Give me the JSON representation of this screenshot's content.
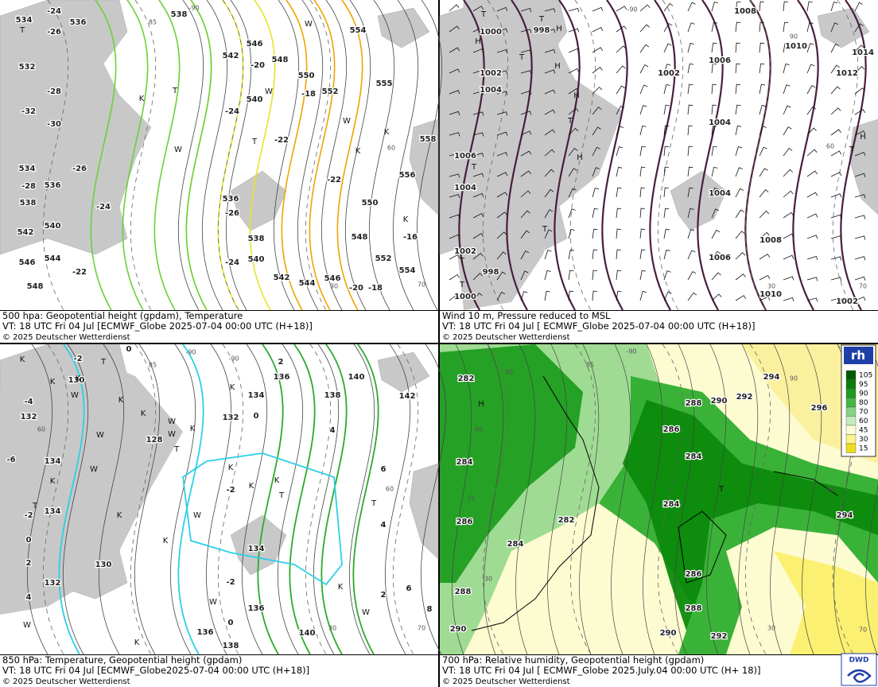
{
  "panels": [
    {
      "caption": [
        "500 hpa: Geopotential height (gpdam), Temperature",
        "VT: 18 UTC Fri  04 Jul [ECMWF_Globe 2025-07-04 00:00 UTC  (H+18)]",
        "© 2025 Deutscher Wetterdienst"
      ],
      "labels": [
        534,
        -24,
        536,
        -26,
        538,
        532,
        -28,
        -32,
        -30,
        534,
        -26,
        536,
        -28,
        -24,
        538,
        540,
        542,
        544,
        546,
        -22,
        548,
        542,
        546,
        548,
        550,
        552,
        554,
        -20,
        -18,
        -24,
        -22,
        536,
        -26,
        538,
        -24,
        540,
        542,
        544,
        546,
        -20,
        -18,
        -22,
        550,
        548,
        552,
        554,
        -16,
        556,
        558,
        555,
        540
      ],
      "markers": [
        "T",
        "K",
        "T",
        "W",
        "W",
        "T",
        "K",
        "K",
        "K",
        "W",
        "W"
      ],
      "graticule": [
        -90,
        85,
        60,
        70,
        30
      ]
    },
    {
      "caption": [
        "Wind 10 m, Pressure reduced to MSL",
        "VT: 18 UTC Fri  04 Jul [ ECMWF_Globe 2025-07-04 00:00 UTC  (H+18)]",
        "© 2025 Deutscher Wetterdienst"
      ],
      "labels": [
        1000,
        998,
        1002,
        1004,
        1006,
        1004,
        1002,
        998,
        1000,
        1008,
        1010,
        1014,
        1006,
        1002,
        1012,
        1004,
        1004,
        1008,
        1006,
        1010,
        1002
      ],
      "markers": [
        "H",
        "H",
        "H",
        "H",
        "H",
        "H",
        "T",
        "T",
        "T",
        "T",
        "T",
        "T",
        "T",
        "T",
        "T"
      ],
      "graticule": [
        -90,
        60,
        30,
        70,
        90
      ]
    },
    {
      "caption": [
        "850 hPa:  Temperature, Geopotential height (gpdam)",
        "VT: 18 UTC Fri  04 Jul [ECMWF_Globe2025-07-04 00:00 UTC (H+18)]",
        "© 2025 Deutscher Wetterdienst"
      ],
      "labels": [
        -2,
        0,
        2,
        136,
        140,
        130,
        -4,
        134,
        138,
        142,
        132,
        132,
        0,
        128,
        4,
        -6,
        134,
        6,
        -2,
        134,
        -2,
        4,
        0,
        134,
        2,
        130,
        -2,
        132,
        2,
        6,
        4,
        8,
        136,
        0,
        136,
        140,
        138
      ],
      "markers": [
        "K",
        "T",
        "K",
        "K",
        "W",
        "K",
        "K",
        "W",
        "W",
        "W",
        "T",
        "K",
        "K",
        "K",
        "K",
        "K",
        "T",
        "K",
        "W",
        "W",
        "K",
        "W",
        "T",
        "W",
        "K",
        "W",
        "K",
        "T",
        "K"
      ],
      "graticule": [
        -90,
        85,
        60,
        60,
        30,
        70,
        -90
      ]
    },
    {
      "caption": [
        "700 hPa:  Relative humidity, Geopotential height (gpdam)",
        "VT: 18 UTC Fri  04 Jul [ ECMWF_Globe  2025.July.04 00:00 UTC  (H+ 18)]",
        "© 2025 Deutscher Wetterdienst"
      ],
      "labels": [
        282,
        284,
        286,
        288,
        290,
        286,
        288,
        290,
        292,
        294,
        296,
        284,
        284,
        282,
        284,
        286,
        288,
        290,
        292,
        294
      ],
      "markers": [
        "H",
        "T"
      ],
      "graticule": [
        -90,
        85,
        80,
        60,
        75,
        30,
        60,
        30,
        70,
        90
      ]
    }
  ],
  "legend": {
    "title": "rh",
    "levels": [
      105,
      95,
      90,
      80,
      70,
      60,
      45,
      30,
      15
    ]
  },
  "logo": "DWD"
}
